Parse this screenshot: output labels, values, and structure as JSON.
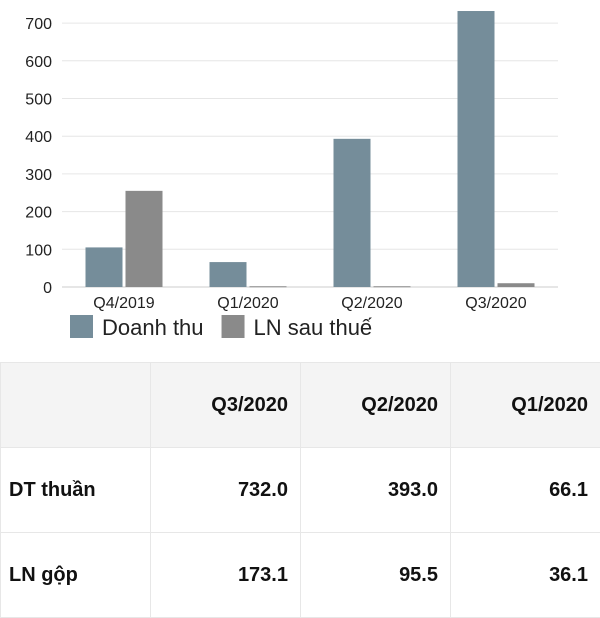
{
  "chart_data": {
    "type": "bar",
    "categories": [
      "Q4/2019",
      "Q1/2020",
      "Q2/2020",
      "Q3/2020"
    ],
    "series": [
      {
        "name": "Doanh thu",
        "values": [
          105,
          66.1,
          393,
          732
        ],
        "color": "#758d9a"
      },
      {
        "name": "LN sau thuế",
        "values": [
          255,
          2,
          2,
          10
        ],
        "color": "#8a8a8a"
      }
    ],
    "yticks": [
      0,
      100,
      200,
      300,
      400,
      500,
      600,
      700
    ],
    "ylim": [
      0,
      740
    ],
    "grid": true,
    "legend_position": "bottom-left"
  },
  "table": {
    "headers": [
      "",
      "Q3/2020",
      "Q2/2020",
      "Q1/2020"
    ],
    "rows": [
      {
        "label": "DT thuần",
        "values": [
          "732.0",
          "393.0",
          "66.1"
        ]
      },
      {
        "label": "LN gộp",
        "values": [
          "173.1",
          "95.5",
          "36.1"
        ]
      }
    ]
  }
}
